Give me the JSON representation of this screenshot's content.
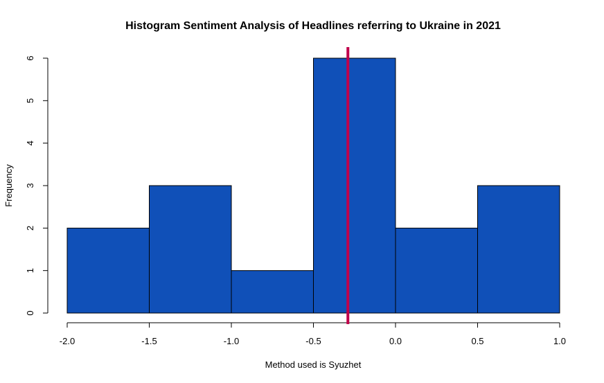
{
  "chart_data": {
    "type": "histogram",
    "title": "Histogram Sentiment Analysis of Headlines referring to Ukraine in 2021",
    "xlabel": "Method used is Syuzhet",
    "ylabel": "Frequency",
    "bins": [
      {
        "start": -2.0,
        "end": -1.5,
        "count": 2
      },
      {
        "start": -1.5,
        "end": -1.0,
        "count": 3
      },
      {
        "start": -1.0,
        "end": -0.5,
        "count": 1
      },
      {
        "start": -0.5,
        "end": 0.0,
        "count": 6
      },
      {
        "start": 0.0,
        "end": 0.5,
        "count": 2
      },
      {
        "start": 0.5,
        "end": 1.0,
        "count": 3
      }
    ],
    "xlim": [
      -2.0,
      1.0
    ],
    "ylim": [
      0,
      6
    ],
    "x_ticks": [
      "-2.0",
      "-1.5",
      "-1.0",
      "-0.5",
      "0.0",
      "0.5",
      "1.0"
    ],
    "y_ticks": [
      "0",
      "1",
      "2",
      "3",
      "4",
      "5",
      "6"
    ],
    "vertical_line": {
      "x": -0.29,
      "color": "#c0004a"
    },
    "bar_color": "#1050b8",
    "grid": false,
    "legend": "none"
  }
}
